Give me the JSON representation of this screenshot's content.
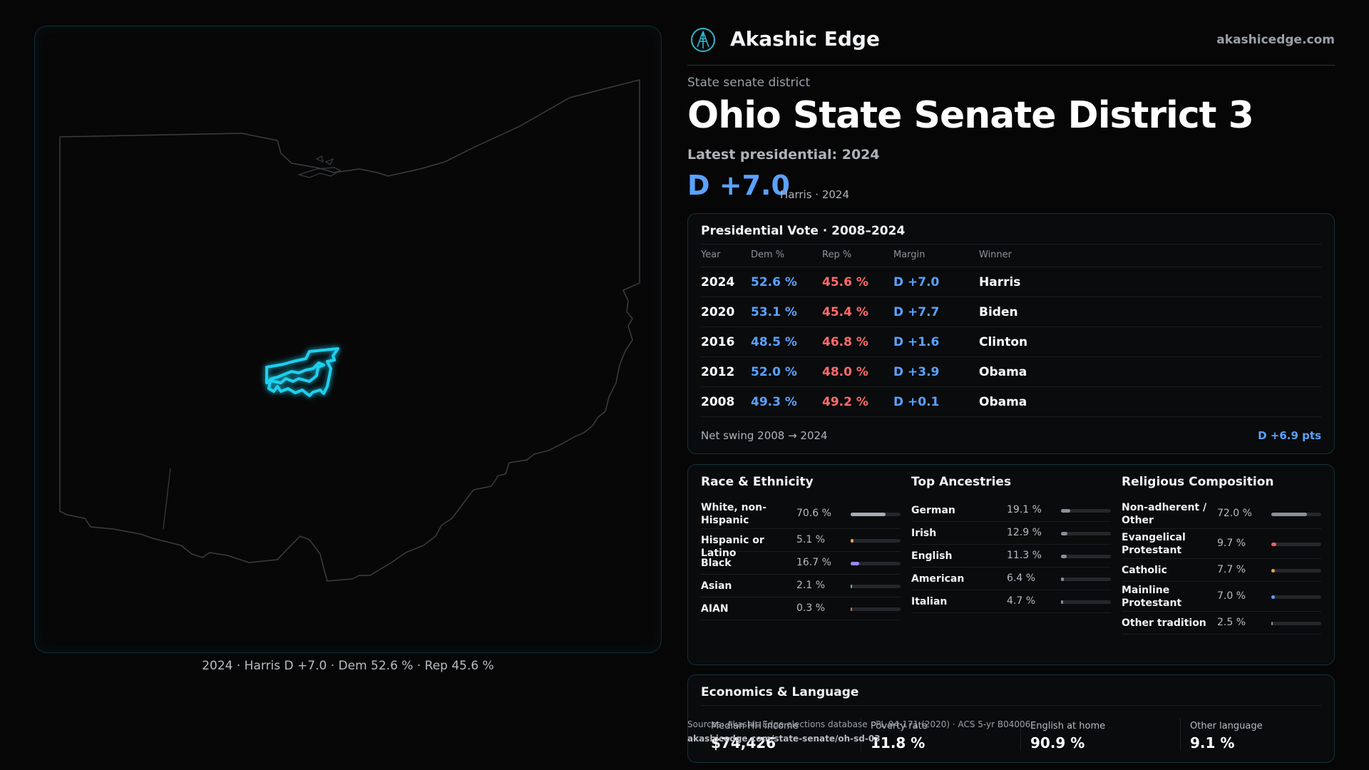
{
  "map": {
    "caption": "2024 · Harris D +7.0 · Dem 52.6 % · Rep 45.6 %",
    "district_color": "#1fd1f0",
    "outline_color": "#3a3d42"
  },
  "header": {
    "brand": "Akashic Edge",
    "site": "akashicedge.com"
  },
  "district": {
    "kicker": "State senate district",
    "title": "Ohio State Senate District 3",
    "latest_label": "Latest presidential: 2024",
    "margin": "D +7.0",
    "margin_sub": "Harris · 2024"
  },
  "presidential": {
    "title": "Presidential Vote · 2008–2024",
    "columns": [
      "Year",
      "Dem %",
      "Rep %",
      "Margin",
      "Winner"
    ],
    "rows": [
      {
        "year": "2024",
        "dem": "52.6 %",
        "rep": "45.6 %",
        "margin": "D +7.0",
        "winner": "Harris"
      },
      {
        "year": "2020",
        "dem": "53.1 %",
        "rep": "45.4 %",
        "margin": "D +7.7",
        "winner": "Biden"
      },
      {
        "year": "2016",
        "dem": "48.5 %",
        "rep": "46.8 %",
        "margin": "D +1.6",
        "winner": "Clinton"
      },
      {
        "year": "2012",
        "dem": "52.0 %",
        "rep": "48.0 %",
        "margin": "D +3.9",
        "winner": "Obama"
      },
      {
        "year": "2008",
        "dem": "49.3 %",
        "rep": "49.2 %",
        "margin": "D +0.1",
        "winner": "Obama"
      }
    ],
    "swing_label": "Net swing 2008 → 2024",
    "swing_value": "D +6.9 pts"
  },
  "race": {
    "title": "Race & Ethnicity",
    "items": [
      {
        "label": "White, non-Hispanic",
        "pct": "70.6 %",
        "value": 70.6,
        "color": "#a7adb6"
      },
      {
        "label": "Hispanic or Latino",
        "pct": "5.1 %",
        "value": 5.1,
        "color": "#e8a33c"
      },
      {
        "label": "Black",
        "pct": "16.7 %",
        "value": 16.7,
        "color": "#9b87ff"
      },
      {
        "label": "Asian",
        "pct": "2.1 %",
        "value": 2.1,
        "color": "#3fd0a8"
      },
      {
        "label": "AIAN",
        "pct": "0.3 %",
        "value": 0.3,
        "color": "#e06a4a"
      }
    ]
  },
  "ancestry": {
    "title": "Top Ancestries",
    "items": [
      {
        "label": "German",
        "pct": "19.1 %",
        "value": 19.1,
        "color": "#8a9099"
      },
      {
        "label": "Irish",
        "pct": "12.9 %",
        "value": 12.9,
        "color": "#8a9099"
      },
      {
        "label": "English",
        "pct": "11.3 %",
        "value": 11.3,
        "color": "#8a9099"
      },
      {
        "label": "American",
        "pct": "6.4 %",
        "value": 6.4,
        "color": "#8a9099"
      },
      {
        "label": "Italian",
        "pct": "4.7 %",
        "value": 4.7,
        "color": "#8a9099"
      }
    ]
  },
  "religion": {
    "title": "Religious Composition",
    "items": [
      {
        "label": "Non-adherent / Other",
        "pct": "72.0 %",
        "value": 72.0,
        "color": "#8a9099"
      },
      {
        "label": "Evangelical Protestant",
        "pct": "9.7 %",
        "value": 9.7,
        "color": "#ff5c5c"
      },
      {
        "label": "Catholic",
        "pct": "7.7 %",
        "value": 7.7,
        "color": "#e8a33c"
      },
      {
        "label": "Mainline Protestant",
        "pct": "7.0 %",
        "value": 7.0,
        "color": "#5aa2ff"
      },
      {
        "label": "Other tradition",
        "pct": "2.5 %",
        "value": 2.5,
        "color": "#8a9099"
      }
    ]
  },
  "economics": {
    "title": "Economics & Language",
    "stats": [
      {
        "label": "Median HH income",
        "value": "$74,426"
      },
      {
        "label": "Poverty rate",
        "value": "11.8 %"
      },
      {
        "label": "English at home",
        "value": "90.9 %"
      },
      {
        "label": "Other language",
        "value": "9.1 %"
      }
    ]
  },
  "footer": {
    "source": "Sources: Akashic Edge elections database · PL 94-171 (2020) · ACS 5-yr B04006",
    "url": "akashicedge.com/state-senate/oh-sd-03"
  }
}
